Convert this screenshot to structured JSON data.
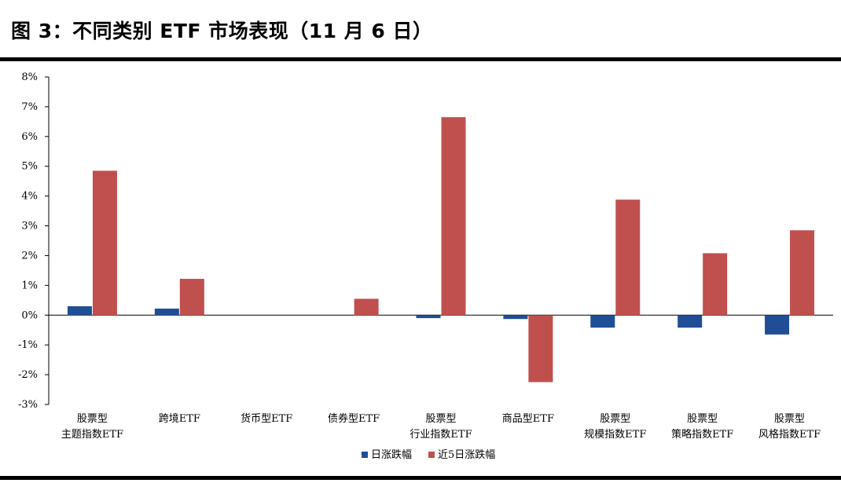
{
  "title": "图 3：不同类别 ETF 市场表现（11 月 6 日）",
  "colors": {
    "daily": "#1F4E96",
    "five_day": "#C0504D",
    "axis": "#000000",
    "rule": "#000000"
  },
  "chart_data": {
    "type": "bar",
    "title": "图 3：不同类别 ETF 市场表现（11 月 6 日）",
    "xlabel": "",
    "ylabel": "",
    "ylim": [
      -3,
      8
    ],
    "yticks": [
      8,
      7,
      6,
      5,
      4,
      3,
      2,
      1,
      0,
      -1,
      -2,
      -3
    ],
    "ytick_labels": [
      "8%",
      "7%",
      "6%",
      "5%",
      "4%",
      "3%",
      "2%",
      "1%",
      "0%",
      "-1%",
      "-2%",
      "-3%"
    ],
    "categories": [
      [
        "股票型",
        "主题指数ETF"
      ],
      [
        "跨境ETF"
      ],
      [
        "货币型ETF"
      ],
      [
        "债券型ETF"
      ],
      [
        "股票型",
        "行业指数ETF"
      ],
      [
        "商品型ETF"
      ],
      [
        "股票型",
        "规模指数ETF"
      ],
      [
        "股票型",
        "策略指数ETF"
      ],
      [
        "股票型",
        "风格指数ETF"
      ]
    ],
    "series": [
      {
        "name": "日涨跌幅",
        "values": [
          0.3,
          0.22,
          0.0,
          0.0,
          -0.1,
          -0.13,
          -0.42,
          -0.42,
          -0.65
        ]
      },
      {
        "name": "近5日涨跌幅",
        "values": [
          4.85,
          1.22,
          0.0,
          0.55,
          6.65,
          -2.25,
          3.88,
          2.08,
          2.85
        ]
      }
    ],
    "legend_position": "bottom"
  }
}
